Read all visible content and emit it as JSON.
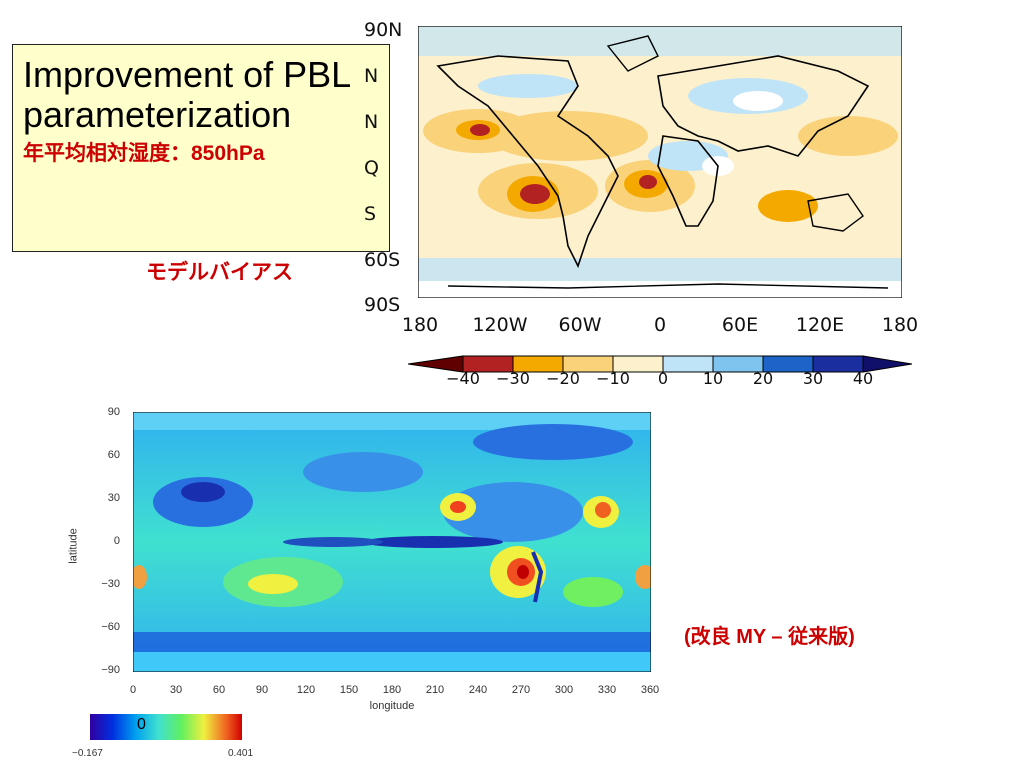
{
  "title": {
    "main": "Improvement of PBL parameterization",
    "sub": "年平均相対湿度：850hPa",
    "sub2": "モデルバイアス"
  },
  "top_map": {
    "y_labels": [
      "90N",
      "N",
      "N",
      "Q",
      "S",
      "60S",
      "90S"
    ],
    "x_labels": [
      "180",
      "120W",
      "60W",
      "0",
      "60E",
      "120E",
      "180"
    ],
    "colorbar_labels": [
      "−40",
      "−30",
      "−20",
      "−10",
      "0",
      "10",
      "20",
      "30",
      "40"
    ],
    "colorbar_colors": [
      "#b22222",
      "#f4a900",
      "#f9d27a",
      "#fdf0cc",
      "#bfe3f7",
      "#7fc4ef",
      "#1e64c8",
      "#1a2ea0"
    ]
  },
  "bottom_map": {
    "y_labels": [
      "90",
      "60",
      "30",
      "0",
      "−30",
      "−60",
      "−90"
    ],
    "x_labels": [
      "0",
      "30",
      "60",
      "90",
      "120",
      "150",
      "180",
      "210",
      "240",
      "270",
      "300",
      "330",
      "360"
    ],
    "ylabel": "latitude",
    "xlabel": "longitude",
    "colorbar_zero": "0",
    "colorbar_min": "−0.167",
    "colorbar_max": "0.401",
    "diff_label": "(改良 MY – 従来版)"
  }
}
